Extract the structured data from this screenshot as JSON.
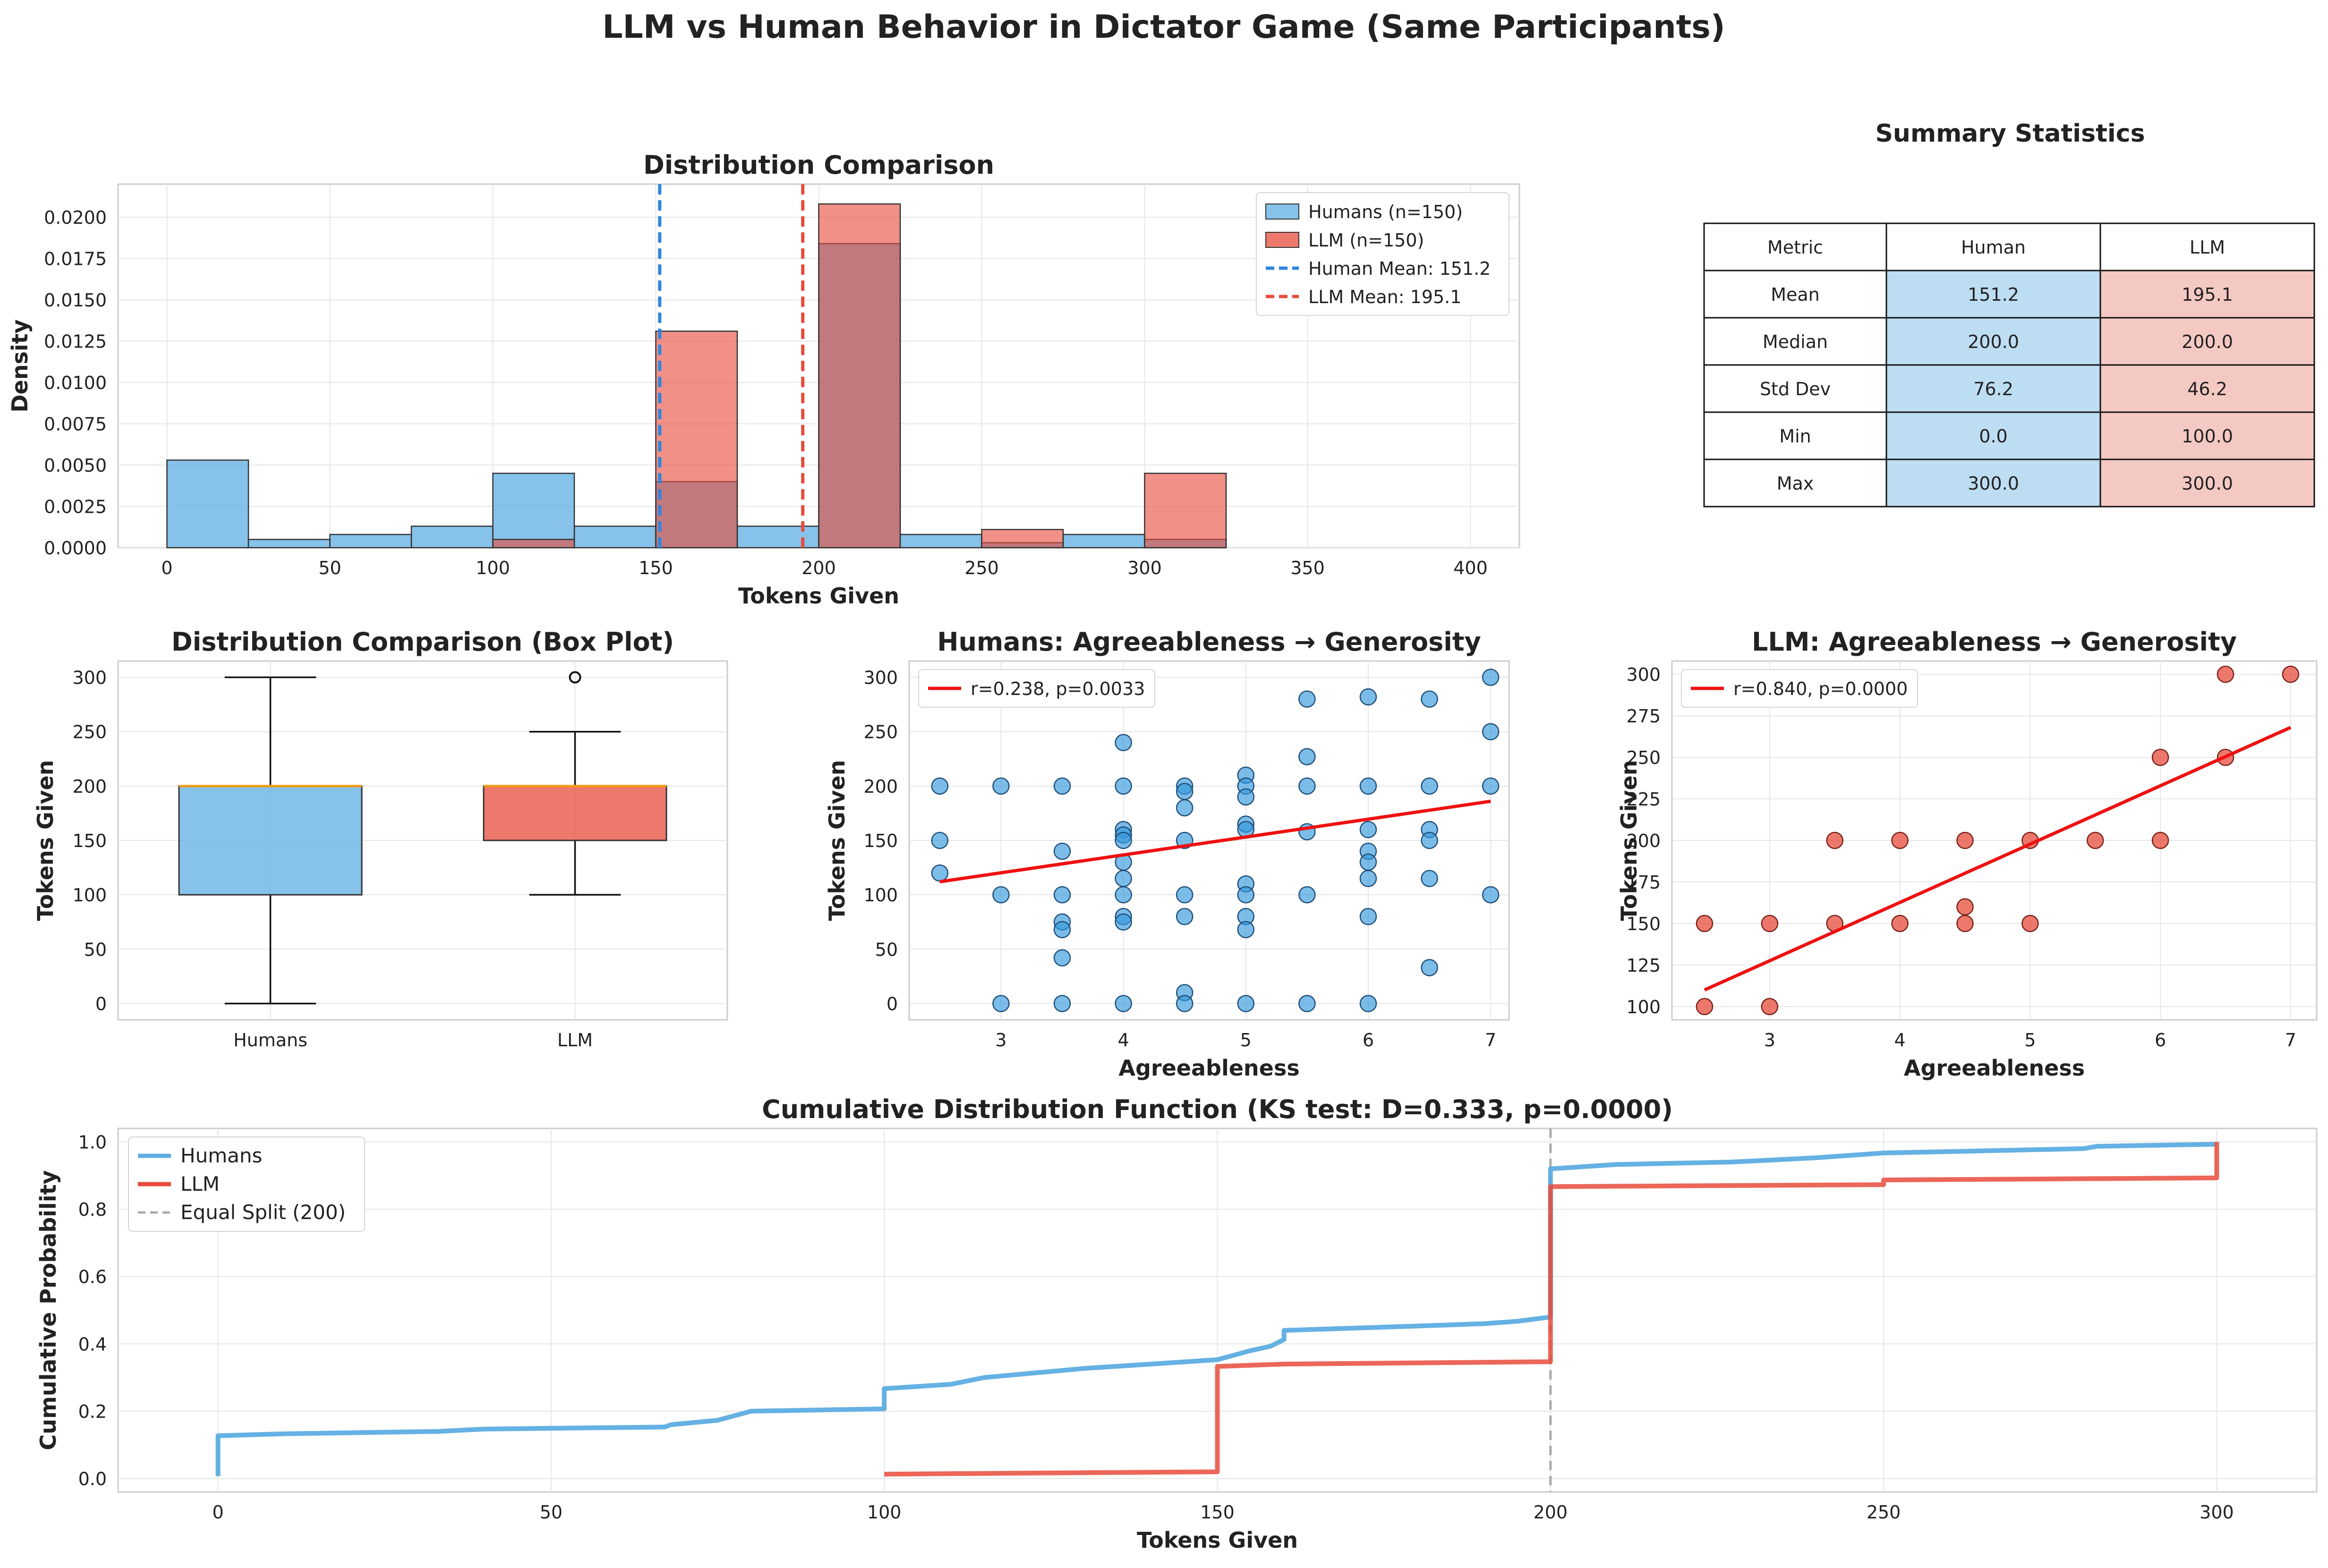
{
  "figure": {
    "title": "LLM vs Human Behavior in Dictator Game (Same Participants)",
    "colors": {
      "human": "#5DADE2",
      "llm": "#E74C3C",
      "human_dark": "#2E86DE",
      "grid": "#e6e6e6",
      "frame": "#cccccc"
    }
  },
  "chart_data": [
    {
      "id": "hist",
      "type": "bar",
      "title": "Distribution Comparison",
      "xlabel": "Tokens Given",
      "ylabel": "Density",
      "xlim": [
        -15,
        415
      ],
      "ylim": [
        0,
        0.022
      ],
      "xticks": [
        0,
        50,
        100,
        150,
        200,
        250,
        300,
        350,
        400
      ],
      "yticks": [
        0.0,
        0.0025,
        0.005,
        0.0075,
        0.01,
        0.0125,
        0.015,
        0.0175,
        0.02
      ],
      "ytick_labels": [
        "0.0000",
        "0.0025",
        "0.0050",
        "0.0075",
        "0.0100",
        "0.0125",
        "0.0150",
        "0.0175",
        "0.0200"
      ],
      "bin_edges": [
        0,
        25,
        50,
        75,
        100,
        125,
        150,
        175,
        200,
        225,
        250,
        275,
        300,
        325,
        350,
        375,
        400
      ],
      "series": [
        {
          "name": "Humans (n=150)",
          "values": [
            0.0053,
            0.0005,
            0.0008,
            0.0013,
            0.0045,
            0.0013,
            0.004,
            0.0013,
            0.0184,
            0.0008,
            0.0003,
            0.0008,
            0.0005,
            0.0,
            0.0,
            0.0
          ]
        },
        {
          "name": "LLM (n=150)",
          "values": [
            0,
            0,
            0,
            0,
            0.0005,
            0,
            0.0131,
            0,
            0.0208,
            0,
            0.0011,
            0,
            0.0045,
            0,
            0,
            0
          ]
        }
      ],
      "mean_lines": [
        {
          "name": "Human Mean: 151.2",
          "x": 151.2
        },
        {
          "name": "LLM Mean: 195.1",
          "x": 195.1
        }
      ],
      "legend": "top-right",
      "grid": true
    },
    {
      "id": "box",
      "type": "box",
      "title": "Distribution Comparison (Box Plot)",
      "xlabel": "",
      "ylabel": "Tokens Given",
      "categories": [
        "Humans",
        "LLM"
      ],
      "ylim": [
        -15,
        315
      ],
      "yticks": [
        0,
        50,
        100,
        150,
        200,
        250,
        300
      ],
      "boxes": [
        {
          "name": "Humans",
          "whisker_low": 0,
          "q1": 100,
          "median": 200,
          "q3": 200,
          "whisker_high": 300,
          "outliers": []
        },
        {
          "name": "LLM",
          "whisker_low": 100,
          "q1": 150,
          "median": 200,
          "q3": 200,
          "whisker_high": 250,
          "outliers": [
            300
          ]
        }
      ],
      "grid": true
    },
    {
      "id": "scatter_h",
      "type": "scatter",
      "title": "Humans: Agreeableness → Generosity",
      "xlabel": "Agreeableness",
      "ylabel": "Tokens Given",
      "xlim": [
        2.25,
        7.15
      ],
      "ylim": [
        -15,
        315
      ],
      "xticks": [
        3,
        4,
        5,
        6,
        7
      ],
      "yticks": [
        0,
        50,
        100,
        150,
        200,
        250,
        300
      ],
      "legend_label": "r=0.238, p=0.0033",
      "fit": [
        [
          2.5,
          112
        ],
        [
          7.0,
          186
        ]
      ],
      "points": [
        [
          2.5,
          200
        ],
        [
          2.5,
          150
        ],
        [
          2.5,
          120
        ],
        [
          3.0,
          200
        ],
        [
          3.0,
          100
        ],
        [
          3.0,
          0
        ],
        [
          3.5,
          200
        ],
        [
          3.5,
          140
        ],
        [
          3.5,
          100
        ],
        [
          3.5,
          75
        ],
        [
          3.5,
          68
        ],
        [
          3.5,
          42
        ],
        [
          3.5,
          0
        ],
        [
          4.0,
          240
        ],
        [
          4.0,
          200
        ],
        [
          4.0,
          160
        ],
        [
          4.0,
          155
        ],
        [
          4.0,
          150
        ],
        [
          4.0,
          130
        ],
        [
          4.0,
          115
        ],
        [
          4.0,
          100
        ],
        [
          4.0,
          80
        ],
        [
          4.0,
          75
        ],
        [
          4.0,
          0
        ],
        [
          4.5,
          200
        ],
        [
          4.5,
          195
        ],
        [
          4.5,
          180
        ],
        [
          4.5,
          150
        ],
        [
          4.5,
          100
        ],
        [
          4.5,
          80
        ],
        [
          4.5,
          10
        ],
        [
          4.5,
          0
        ],
        [
          5.0,
          210
        ],
        [
          5.0,
          200
        ],
        [
          5.0,
          190
        ],
        [
          5.0,
          165
        ],
        [
          5.0,
          160
        ],
        [
          5.0,
          110
        ],
        [
          5.0,
          100
        ],
        [
          5.0,
          80
        ],
        [
          5.0,
          68
        ],
        [
          5.0,
          0
        ],
        [
          5.5,
          280
        ],
        [
          5.5,
          227
        ],
        [
          5.5,
          200
        ],
        [
          5.5,
          158
        ],
        [
          5.5,
          100
        ],
        [
          5.5,
          0
        ],
        [
          6.0,
          282
        ],
        [
          6.0,
          200
        ],
        [
          6.0,
          160
        ],
        [
          6.0,
          140
        ],
        [
          6.0,
          130
        ],
        [
          6.0,
          115
        ],
        [
          6.0,
          80
        ],
        [
          6.0,
          0
        ],
        [
          6.5,
          280
        ],
        [
          6.5,
          200
        ],
        [
          6.5,
          160
        ],
        [
          6.5,
          150
        ],
        [
          6.5,
          115
        ],
        [
          6.5,
          33
        ],
        [
          7.0,
          300
        ],
        [
          7.0,
          250
        ],
        [
          7.0,
          200
        ],
        [
          7.0,
          100
        ]
      ],
      "grid": true
    },
    {
      "id": "scatter_l",
      "type": "scatter",
      "title": "LLM: Agreeableness → Generosity",
      "xlabel": "Agreeableness",
      "ylabel": "Tokens Given",
      "xlim": [
        2.25,
        7.2
      ],
      "ylim": [
        92,
        308
      ],
      "xticks": [
        2,
        3,
        4,
        5,
        6,
        7
      ],
      "yticks": [
        100,
        125,
        150,
        175,
        200,
        225,
        250,
        275,
        300
      ],
      "legend_label": "r=0.840, p=0.0000",
      "fit": [
        [
          2.5,
          110
        ],
        [
          7.0,
          268
        ]
      ],
      "points": [
        [
          2.5,
          150
        ],
        [
          2.5,
          100
        ],
        [
          3.0,
          150
        ],
        [
          3.0,
          100
        ],
        [
          3.5,
          150
        ],
        [
          3.5,
          200
        ],
        [
          4.0,
          150
        ],
        [
          4.0,
          200
        ],
        [
          4.5,
          200
        ],
        [
          4.5,
          160
        ],
        [
          4.5,
          150
        ],
        [
          5.0,
          200
        ],
        [
          5.0,
          150
        ],
        [
          5.5,
          200
        ],
        [
          6.0,
          250
        ],
        [
          6.0,
          200
        ],
        [
          6.5,
          300
        ],
        [
          6.5,
          250
        ],
        [
          7.0,
          300
        ]
      ],
      "grid": true
    },
    {
      "id": "cdf",
      "type": "line",
      "title": "Cumulative Distribution Function (KS test: D=0.333, p=0.0000)",
      "xlabel": "Tokens Given",
      "ylabel": "Cumulative Probability",
      "xlim": [
        -15,
        315
      ],
      "ylim": [
        -0.04,
        1.04
      ],
      "xticks": [
        0,
        50,
        100,
        150,
        200,
        250,
        300
      ],
      "yticks": [
        0.0,
        0.2,
        0.4,
        0.6,
        0.8,
        1.0
      ],
      "ytick_labels": [
        "0.0",
        "0.2",
        "0.4",
        "0.6",
        "0.8",
        "1.0"
      ],
      "series": [
        {
          "name": "Humans",
          "points": [
            [
              0,
              0.007
            ],
            [
              0,
              0.127
            ],
            [
              10,
              0.133
            ],
            [
              33,
              0.14
            ],
            [
              40,
              0.147
            ],
            [
              67,
              0.153
            ],
            [
              68,
              0.16
            ],
            [
              75,
              0.173
            ],
            [
              80,
              0.2
            ],
            [
              100,
              0.207
            ],
            [
              100,
              0.267
            ],
            [
              110,
              0.28
            ],
            [
              115,
              0.3
            ],
            [
              130,
              0.327
            ],
            [
              140,
              0.34
            ],
            [
              150,
              0.353
            ],
            [
              155,
              0.38
            ],
            [
              158,
              0.393
            ],
            [
              160,
              0.413
            ],
            [
              160,
              0.44
            ],
            [
              180,
              0.453
            ],
            [
              190,
              0.46
            ],
            [
              195,
              0.467
            ],
            [
              200,
              0.48
            ],
            [
              200,
              0.92
            ],
            [
              210,
              0.933
            ],
            [
              227,
              0.94
            ],
            [
              240,
              0.953
            ],
            [
              250,
              0.967
            ],
            [
              280,
              0.98
            ],
            [
              282,
              0.987
            ],
            [
              300,
              0.993
            ]
          ]
        },
        {
          "name": "LLM",
          "points": [
            [
              100,
              0.013
            ],
            [
              150,
              0.02
            ],
            [
              150,
              0.333
            ],
            [
              160,
              0.34
            ],
            [
              200,
              0.347
            ],
            [
              200,
              0.867
            ],
            [
              250,
              0.873
            ],
            [
              250,
              0.887
            ],
            [
              300,
              0.893
            ],
            [
              300,
              1.0
            ]
          ]
        }
      ],
      "reference_line": {
        "name": "Equal Split (200)",
        "x": 200
      },
      "legend": "top-left",
      "grid": true
    }
  ],
  "table": {
    "title": "Summary Statistics",
    "headers": [
      "Metric",
      "Human",
      "LLM"
    ],
    "rows": [
      [
        "Mean",
        "151.2",
        "195.1"
      ],
      [
        "Median",
        "200.0",
        "200.0"
      ],
      [
        "Std Dev",
        "76.2",
        "46.2"
      ],
      [
        "Min",
        "0.0",
        "100.0"
      ],
      [
        "Max",
        "300.0",
        "300.0"
      ]
    ],
    "colors": {
      "human_cell": "#BDDDF2",
      "llm_cell": "#F5C9C3"
    }
  }
}
